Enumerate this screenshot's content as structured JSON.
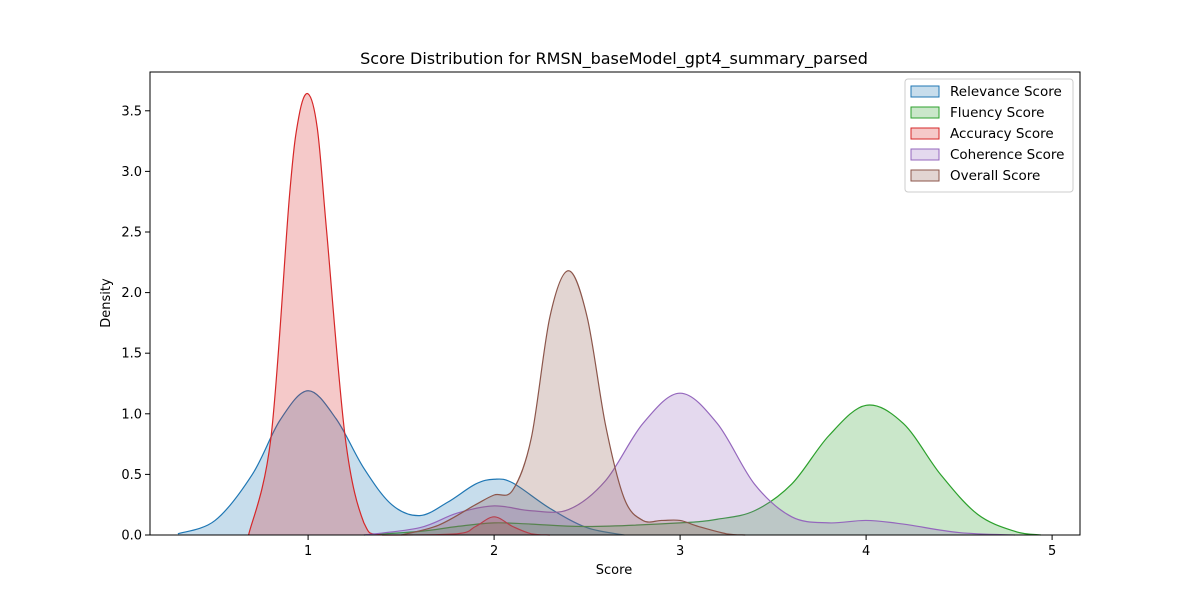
{
  "chart_data": {
    "type": "area",
    "title": "Score Distribution for RMSN_baseModel_gpt4_summary_parsed",
    "xlabel": "Score",
    "ylabel": "Density",
    "xlim": [
      0.15,
      5.15
    ],
    "ylim": [
      0,
      3.82
    ],
    "xticks": [
      1,
      2,
      3,
      4,
      5
    ],
    "yticks": [
      0.0,
      0.5,
      1.0,
      1.5,
      2.0,
      2.5,
      3.0,
      3.5
    ],
    "grid": false,
    "legend_position": "top-right",
    "series": [
      {
        "name": "Relevance Score",
        "color": "#1f77b4",
        "fill_opacity": 0.25,
        "x": [
          0.3,
          0.5,
          0.7,
          0.85,
          1.0,
          1.15,
          1.3,
          1.45,
          1.6,
          1.75,
          1.9,
          2.0,
          2.1,
          2.3,
          2.5,
          2.7
        ],
        "y": [
          0.01,
          0.12,
          0.5,
          0.95,
          1.19,
          0.96,
          0.55,
          0.25,
          0.16,
          0.27,
          0.42,
          0.46,
          0.43,
          0.22,
          0.06,
          0.0
        ]
      },
      {
        "name": "Fluency Score",
        "color": "#2ca02c",
        "fill_opacity": 0.25,
        "x": [
          1.3,
          1.6,
          1.8,
          2.0,
          2.2,
          2.5,
          3.0,
          3.2,
          3.4,
          3.6,
          3.8,
          4.0,
          4.2,
          4.4,
          4.6,
          4.8,
          4.94
        ],
        "y": [
          0.0,
          0.03,
          0.07,
          0.1,
          0.09,
          0.07,
          0.1,
          0.13,
          0.2,
          0.42,
          0.82,
          1.07,
          0.92,
          0.5,
          0.17,
          0.03,
          0.0
        ]
      },
      {
        "name": "Accuracy Score",
        "color": "#d62728",
        "fill_opacity": 0.25,
        "x": [
          0.68,
          0.8,
          0.9,
          0.95,
          1.0,
          1.05,
          1.1,
          1.2,
          1.3,
          1.4,
          1.8,
          1.9,
          2.0,
          2.1,
          2.2,
          2.3
        ],
        "y": [
          0.0,
          0.8,
          2.8,
          3.45,
          3.64,
          3.35,
          2.5,
          0.8,
          0.1,
          0.0,
          0.01,
          0.07,
          0.15,
          0.07,
          0.01,
          0.0
        ]
      },
      {
        "name": "Coherence Score",
        "color": "#9467bd",
        "fill_opacity": 0.25,
        "x": [
          1.3,
          1.6,
          1.8,
          2.0,
          2.2,
          2.4,
          2.6,
          2.8,
          3.0,
          3.2,
          3.4,
          3.6,
          3.8,
          4.0,
          4.2,
          4.5,
          4.8
        ],
        "y": [
          0.0,
          0.06,
          0.18,
          0.24,
          0.2,
          0.21,
          0.45,
          0.92,
          1.17,
          0.92,
          0.42,
          0.15,
          0.1,
          0.12,
          0.09,
          0.02,
          0.0
        ]
      },
      {
        "name": "Overall Score",
        "color": "#8c564b",
        "fill_opacity": 0.25,
        "x": [
          1.5,
          1.7,
          1.9,
          2.0,
          2.1,
          2.2,
          2.3,
          2.4,
          2.5,
          2.6,
          2.7,
          2.8,
          2.9,
          3.0,
          3.1,
          3.25,
          3.35
        ],
        "y": [
          0.0,
          0.08,
          0.25,
          0.33,
          0.37,
          0.8,
          1.8,
          2.18,
          1.8,
          0.9,
          0.3,
          0.12,
          0.12,
          0.12,
          0.07,
          0.01,
          0.0
        ]
      }
    ]
  }
}
